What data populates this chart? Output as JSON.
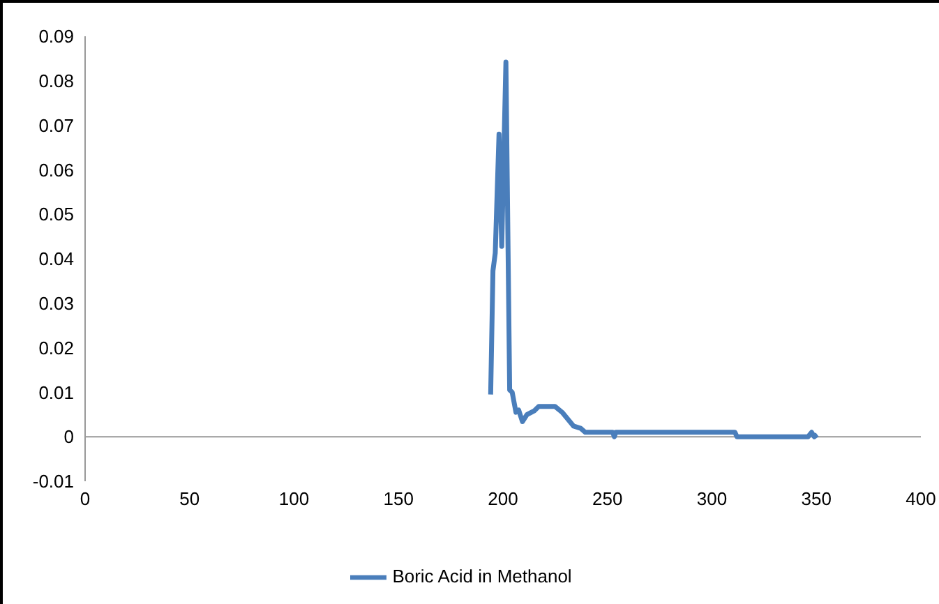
{
  "chart_data": {
    "type": "line",
    "legend": "bottom",
    "grid": false,
    "marker": "none",
    "line_style": "solid",
    "xlim": [
      0,
      400
    ],
    "xticks": [
      0,
      50,
      100,
      150,
      200,
      250,
      300,
      350,
      400
    ],
    "ylim": [
      -0.01,
      0.09
    ],
    "ref_lines": [
      {
        "axis": "y",
        "value": 0,
        "color": "#999999"
      }
    ],
    "yticks": [
      -0.01,
      0,
      0.01,
      0.02,
      0.03,
      0.04,
      0.05,
      0.06,
      0.07,
      0.08,
      0.09
    ],
    "series": [
      {
        "name": "Boric Acid in Methanol",
        "color": "#4a7ebb",
        "x": [
          194.1,
          195.2,
          196.3,
          198.1,
          199.4,
          201.4,
          203.2,
          204.4,
          206.2,
          207.5,
          209.3,
          211.5,
          214.9,
          217.1,
          224.9,
          228.3,
          233.8,
          237.2,
          239.4,
          252.5,
          253.3,
          254,
          311,
          312,
          346,
          347.7,
          349,
          350.4
        ],
        "values": [
          0.0095,
          0.0373,
          0.0413,
          0.068,
          0.0428,
          0.0842,
          0.0105,
          0.01,
          0.0055,
          0.006,
          0.0034,
          0.005,
          0.0058,
          0.0068,
          0.0068,
          0.0055,
          0.0024,
          0.0019,
          0.001,
          0.001,
          0,
          0.001,
          0.001,
          0,
          0,
          0.001,
          0,
          0.0005
        ]
      }
    ]
  }
}
